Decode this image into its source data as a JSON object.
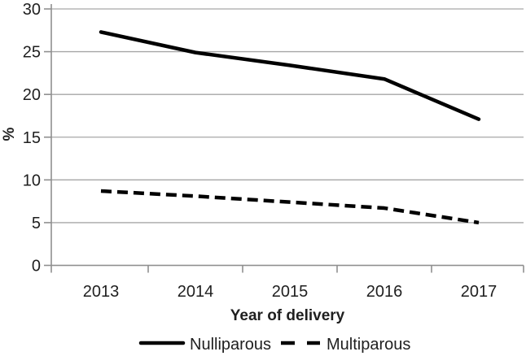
{
  "chart_data": {
    "type": "line",
    "xlabel": "Year of delivery",
    "ylabel": "%",
    "categories": [
      "2013",
      "2014",
      "2015",
      "2016",
      "2017"
    ],
    "series": [
      {
        "name": "Nulliparous",
        "style": "solid",
        "values": [
          27.3,
          24.9,
          23.4,
          21.8,
          17.1
        ]
      },
      {
        "name": "Multiparous",
        "style": "dashed",
        "values": [
          8.7,
          8.1,
          7.4,
          6.7,
          5.0
        ]
      }
    ],
    "ylim": [
      0,
      30
    ],
    "yticks": [
      0,
      5,
      10,
      15,
      20,
      25,
      30
    ],
    "grid": true,
    "legend_position": "bottom",
    "line_color": "#000000",
    "gridline_color": "#a6a6a6",
    "axis_color": "#8f8f8f",
    "text_color": "#1f1f1f"
  }
}
